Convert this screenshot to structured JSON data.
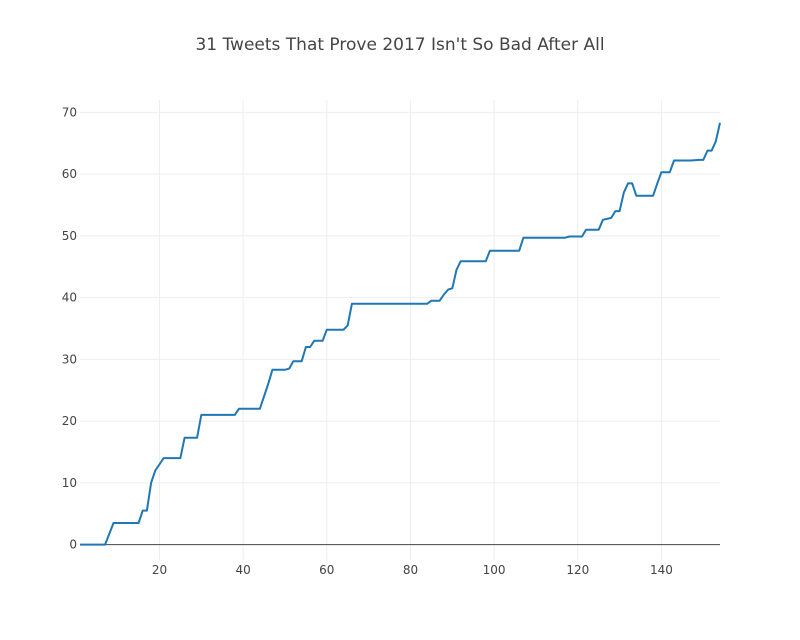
{
  "chart_data": {
    "type": "line",
    "title": "31 Tweets That Prove 2017 Isn't So Bad After All",
    "xlabel": "",
    "ylabel": "",
    "xlim": [
      1,
      154
    ],
    "ylim": [
      -2.5,
      72
    ],
    "x_ticks": [
      20,
      40,
      60,
      80,
      100,
      120,
      140
    ],
    "x_tick_labels": [
      "20",
      "40",
      "60",
      "80",
      "100",
      "120",
      "140"
    ],
    "y_ticks": [
      0,
      10,
      20,
      30,
      40,
      50,
      60,
      70
    ],
    "y_tick_labels": [
      "0",
      "10",
      "20",
      "30",
      "40",
      "50",
      "60",
      "70"
    ],
    "grid": true,
    "colors": {
      "series": "#1f77b4",
      "grid": "#eeeeee",
      "zero_line": "#444444",
      "text": "#444444"
    },
    "series": [
      {
        "x": [
          1,
          7,
          9,
          15,
          16,
          17,
          18,
          19,
          21,
          25,
          26,
          29,
          30,
          38,
          39,
          44,
          46,
          47,
          50,
          51,
          52,
          54,
          55,
          56,
          57,
          59,
          60,
          64,
          65,
          66,
          80,
          84,
          85,
          87,
          88,
          89,
          90,
          91,
          92,
          98,
          99,
          106,
          107,
          117,
          118,
          121,
          122,
          125,
          126,
          128,
          129,
          130,
          131,
          132,
          133,
          134,
          138,
          139,
          140,
          142,
          143,
          147,
          149,
          150,
          151,
          152,
          153,
          154
        ],
        "y": [
          0,
          0,
          3.5,
          3.5,
          5.5,
          5.5,
          10,
          12,
          14,
          14,
          17.3,
          17.3,
          21,
          21,
          22,
          22,
          26,
          28.3,
          28.3,
          28.5,
          29.7,
          29.7,
          32,
          32,
          33,
          33,
          34.8,
          34.8,
          35.5,
          39,
          39,
          39,
          39.5,
          39.5,
          40.5,
          41.3,
          41.5,
          44.5,
          45.9,
          45.9,
          47.6,
          47.6,
          49.7,
          49.7,
          49.9,
          49.9,
          51,
          51,
          52.6,
          52.9,
          54,
          54,
          57,
          58.5,
          58.5,
          56.5,
          56.5,
          58.5,
          60.3,
          60.3,
          62.2,
          62.2,
          62.3,
          62.3,
          63.8,
          63.8,
          65.3,
          68.3
        ]
      }
    ]
  }
}
